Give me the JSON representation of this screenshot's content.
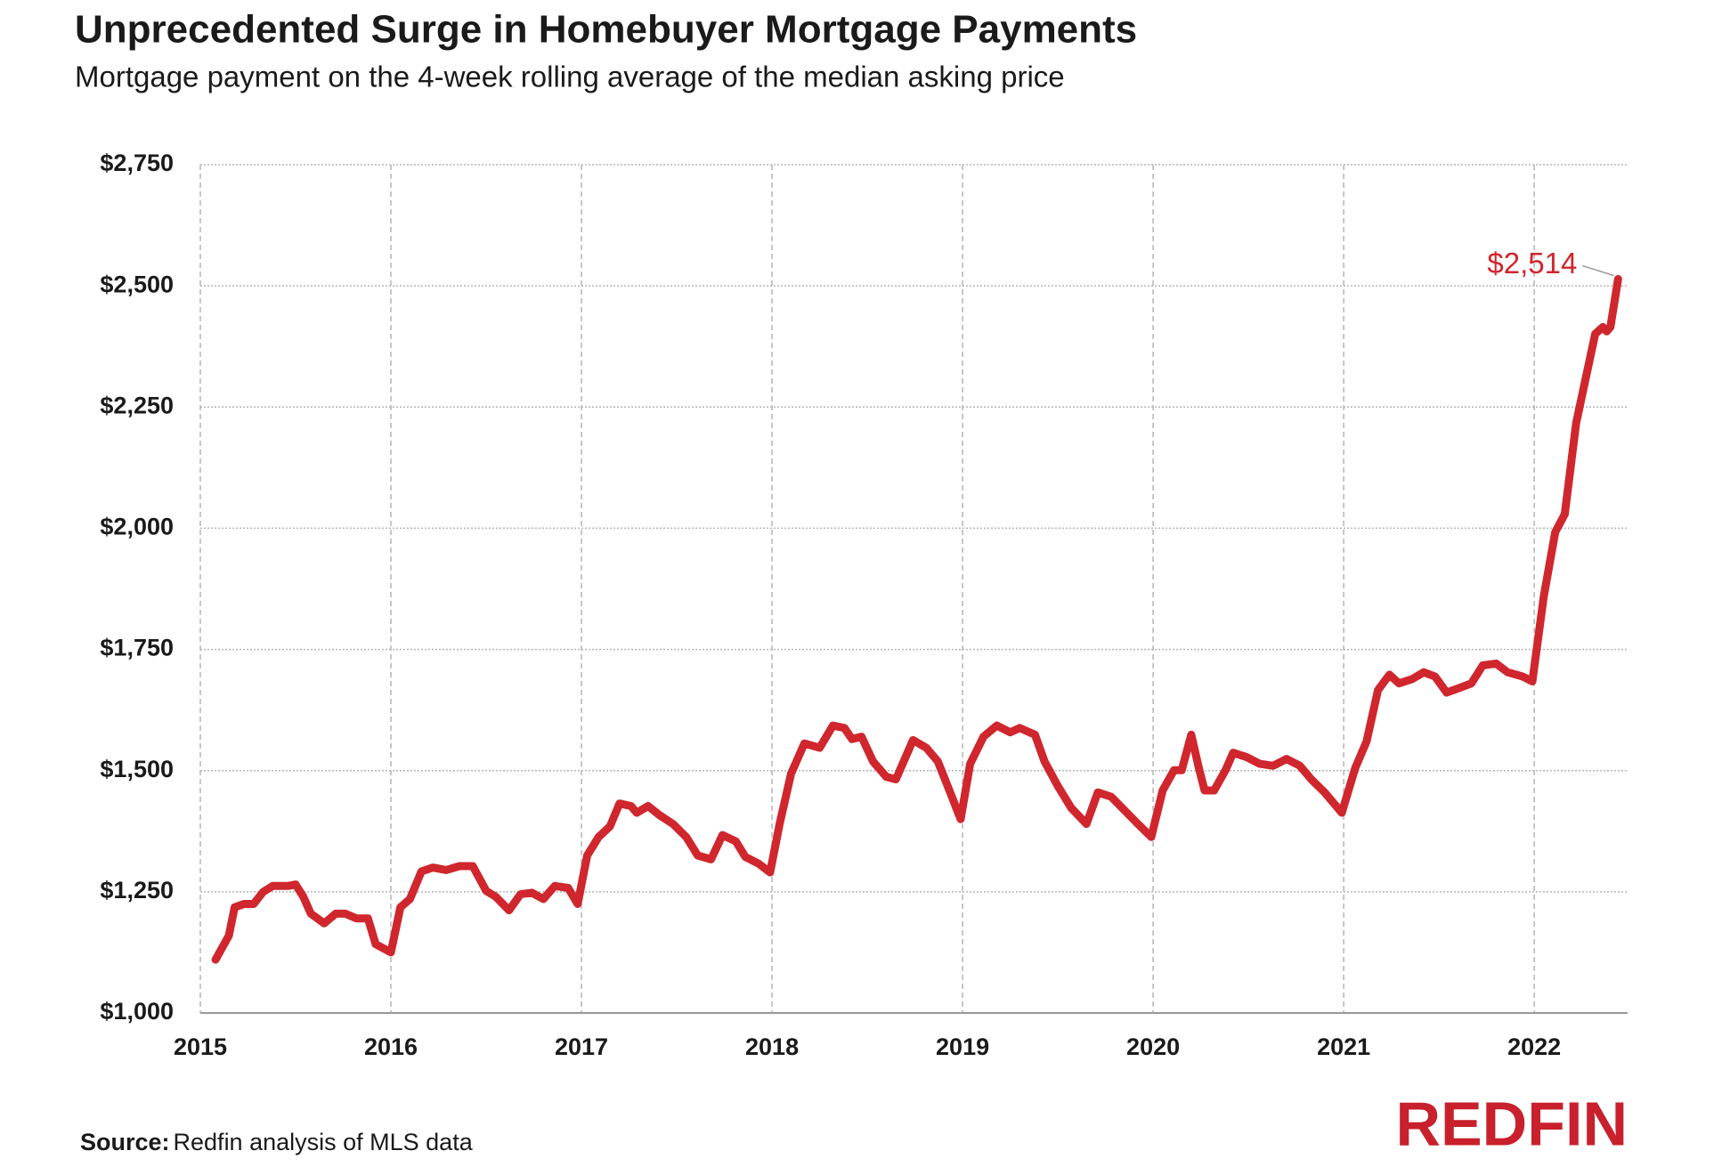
{
  "chart_data": {
    "type": "line",
    "title": "Unprecedented Surge in Homebuyer Mortgage Payments",
    "subtitle": "Mortgage payment on the 4-week rolling average of the median asking price",
    "xlim": [
      2015,
      2022.49
    ],
    "xticks": [
      2015,
      2016,
      2017,
      2018,
      2019,
      2020,
      2021,
      2022
    ],
    "ylim": [
      1000,
      2750
    ],
    "yticks": [
      {
        "value": 1000,
        "label": "$1,000"
      },
      {
        "value": 1250,
        "label": "$1,250"
      },
      {
        "value": 1500,
        "label": "$1,500"
      },
      {
        "value": 1750,
        "label": "$1,750"
      },
      {
        "value": 2000,
        "label": "$2,000"
      },
      {
        "value": 2250,
        "label": "$2,250"
      },
      {
        "value": 2500,
        "label": "$2,500"
      },
      {
        "value": 2750,
        "label": "$2,750"
      }
    ],
    "grid": true,
    "x": [
      2015.08,
      2015.15,
      2015.18,
      2015.23,
      2015.28,
      2015.33,
      2015.38,
      2015.46,
      2015.5,
      2015.54,
      2015.58,
      2015.65,
      2015.71,
      2015.76,
      2015.82,
      2015.88,
      2015.92,
      2016.0,
      2016.05,
      2016.1,
      2016.16,
      2016.22,
      2016.29,
      2016.36,
      2016.43,
      2016.5,
      2016.55,
      2016.62,
      2016.68,
      2016.74,
      2016.8,
      2016.86,
      2016.93,
      2016.98,
      2017.03,
      2017.09,
      2017.15,
      2017.2,
      2017.26,
      2017.29,
      2017.35,
      2017.41,
      2017.48,
      2017.55,
      2017.61,
      2017.68,
      2017.74,
      2017.81,
      2017.86,
      2017.93,
      2017.99,
      2018.04,
      2018.1,
      2018.17,
      2018.25,
      2018.32,
      2018.38,
      2018.42,
      2018.47,
      2018.53,
      2018.6,
      2018.65,
      2018.74,
      2018.81,
      2018.87,
      2018.94,
      2018.99,
      2019.04,
      2019.11,
      2019.18,
      2019.25,
      2019.3,
      2019.38,
      2019.43,
      2019.5,
      2019.57,
      2019.65,
      2019.71,
      2019.78,
      2019.85,
      2019.92,
      2019.99,
      2020.05,
      2020.11,
      2020.15,
      2020.2,
      2020.24,
      2020.27,
      2020.32,
      2020.38,
      2020.42,
      2020.49,
      2020.56,
      2020.63,
      2020.7,
      2020.77,
      2020.83,
      2020.9,
      2020.99,
      2021.06,
      2021.12,
      2021.18,
      2021.24,
      2021.29,
      2021.36,
      2021.42,
      2021.48,
      2021.54,
      2021.61,
      2021.67,
      2021.73,
      2021.8,
      2021.86,
      2021.94,
      2021.99,
      2022.05,
      2022.11,
      2022.16,
      2022.22,
      2022.28,
      2022.32,
      2022.36,
      2022.38,
      2022.4,
      2022.44
    ],
    "series": [
      {
        "name": "Mortgage payment",
        "color": "#d0262d",
        "values": [
          1110,
          1160,
          1218,
          1225,
          1225,
          1250,
          1262,
          1262,
          1265,
          1240,
          1205,
          1185,
          1205,
          1205,
          1195,
          1195,
          1142,
          1125,
          1218,
          1235,
          1292,
          1300,
          1295,
          1303,
          1303,
          1252,
          1240,
          1212,
          1245,
          1248,
          1235,
          1262,
          1258,
          1225,
          1325,
          1363,
          1385,
          1432,
          1427,
          1413,
          1427,
          1408,
          1390,
          1363,
          1325,
          1317,
          1367,
          1354,
          1322,
          1308,
          1290,
          1390,
          1494,
          1556,
          1547,
          1593,
          1588,
          1565,
          1570,
          1519,
          1487,
          1482,
          1563,
          1547,
          1519,
          1450,
          1400,
          1514,
          1570,
          1593,
          1579,
          1588,
          1574,
          1519,
          1468,
          1423,
          1390,
          1455,
          1446,
          1418,
          1390,
          1363,
          1459,
          1501,
          1501,
          1574,
          1505,
          1459,
          1459,
          1501,
          1537,
          1528,
          1514,
          1510,
          1524,
          1510,
          1482,
          1455,
          1413,
          1505,
          1560,
          1666,
          1698,
          1680,
          1689,
          1703,
          1694,
          1661,
          1671,
          1680,
          1717,
          1721,
          1703,
          1694,
          1684,
          1859,
          1992,
          2029,
          2217,
          2328,
          2401,
          2415,
          2406,
          2415,
          2514
        ],
        "value_labels": [
          null,
          null,
          null,
          null,
          null,
          null,
          null,
          null,
          null,
          null,
          null,
          null,
          null,
          null,
          null,
          null,
          null,
          null,
          null,
          null,
          null,
          null,
          null,
          null,
          null,
          null,
          null,
          null,
          null,
          null,
          null,
          null,
          null,
          null,
          null,
          null,
          null,
          null,
          null,
          null,
          null,
          null,
          null,
          null,
          null,
          null,
          null,
          null,
          null,
          null,
          null,
          null,
          null,
          null,
          null,
          null,
          null,
          null,
          null,
          null,
          null,
          null,
          null,
          null,
          null,
          null,
          null,
          null,
          null,
          null,
          null,
          null,
          null,
          null,
          null,
          null,
          null,
          null,
          null,
          null,
          null,
          null,
          null,
          null,
          null,
          null,
          null,
          null,
          null,
          null,
          null,
          null,
          null,
          null,
          null,
          null,
          null,
          null,
          null,
          null,
          null,
          null,
          null,
          null,
          null,
          null,
          null,
          null,
          null,
          null,
          null,
          null,
          null,
          null,
          null,
          null,
          null,
          null,
          null,
          null,
          null,
          null,
          null,
          null,
          "$2,514"
        ]
      }
    ]
  },
  "footer": {
    "source_label": "Source:",
    "source": "Redfin analysis of MLS data",
    "logo": "REDFIN"
  }
}
